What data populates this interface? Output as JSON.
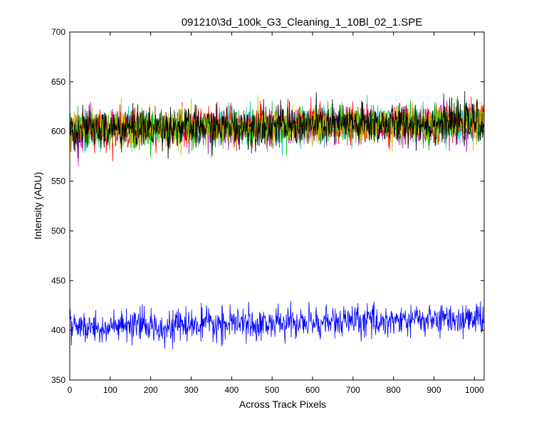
{
  "figure": {
    "background": "#ffffff",
    "axes_color": "#000000"
  },
  "chart_data": {
    "type": "line",
    "title": "091210\\3d_100k_G3_Cleaning_1_10Bl_02_1.SPE",
    "xlabel": "Across Track Pixels",
    "ylabel": "Intensity (ADU)",
    "xlim": [
      0,
      1024
    ],
    "ylim": [
      350,
      700
    ],
    "xticks": [
      0,
      100,
      200,
      300,
      400,
      500,
      600,
      700,
      800,
      900,
      1000
    ],
    "yticks": [
      350,
      400,
      450,
      500,
      550,
      600,
      650,
      700
    ],
    "grid": false,
    "legend": "none",
    "noisy": true,
    "series": [
      {
        "color": "#00bfbf",
        "mean_start": 602,
        "mean_end": 609,
        "noise_sd": 9
      },
      {
        "color": "#bf00bf",
        "mean_start": 601,
        "mean_end": 608,
        "noise_sd": 9
      },
      {
        "color": "#ff0000",
        "mean_start": 603,
        "mean_end": 610,
        "noise_sd": 9
      },
      {
        "color": "#00bf00",
        "mean_start": 602,
        "mean_end": 609,
        "noise_sd": 9
      },
      {
        "color": "#bfbf00",
        "mean_start": 601,
        "mean_end": 608,
        "noise_sd": 9
      },
      {
        "color": "#000000",
        "mean_start": 602,
        "mean_end": 609,
        "noise_sd": 10,
        "max": 658,
        "min": 572
      },
      {
        "color": "#0000ff",
        "mean_start": 402,
        "mean_end": 412,
        "noise_sd": 8,
        "max": 439,
        "min": 381
      }
    ]
  }
}
